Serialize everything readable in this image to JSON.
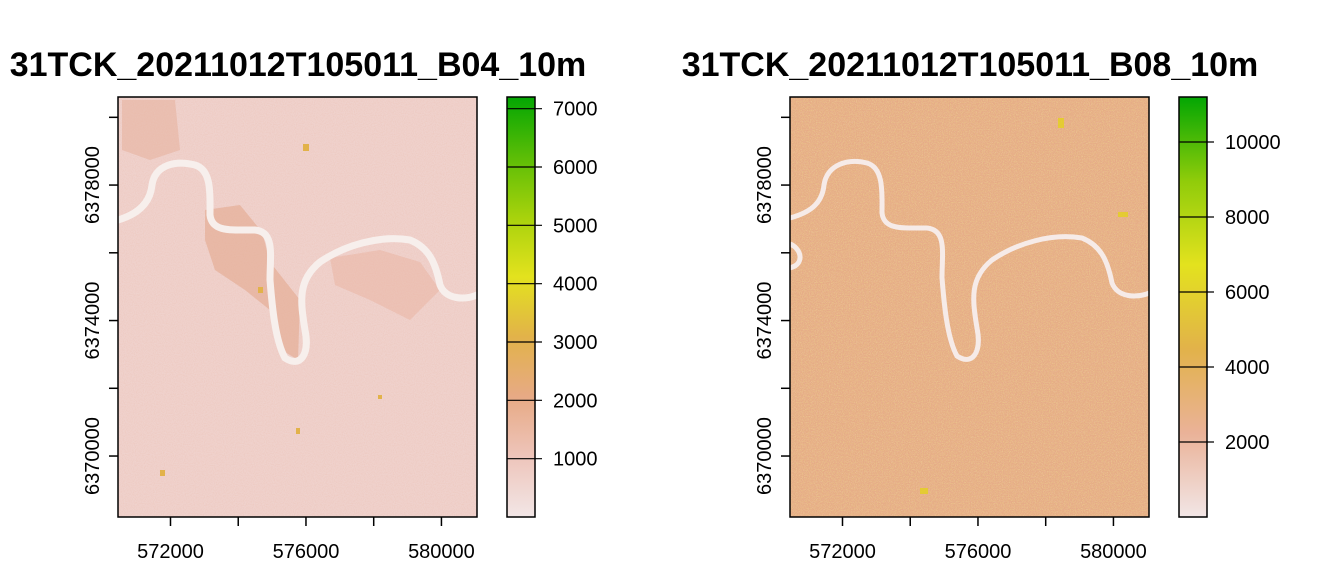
{
  "panels": [
    {
      "title": "31TCK_20211012T105011_B04_10m",
      "x_ticks": [
        "572000",
        "576000",
        "580000"
      ],
      "y_ticks": [
        "6370000",
        "6374000",
        "6378000"
      ],
      "legend": {
        "ticks": [
          "1000",
          "2000",
          "3000",
          "4000",
          "5000",
          "6000",
          "7000"
        ],
        "min": 0,
        "max": 7200
      }
    },
    {
      "title": "31TCK_20211012T105011_B08_10m",
      "x_ticks": [
        "572000",
        "576000",
        "580000"
      ],
      "y_ticks": [
        "6370000",
        "6374000",
        "6378000"
      ],
      "legend": {
        "ticks": [
          "2000",
          "4000",
          "6000",
          "8000",
          "10000"
        ],
        "min": 0,
        "max": 11200
      }
    }
  ],
  "chart_data": [
    {
      "type": "heatmap",
      "title": "31TCK_20211012T105011_B04_10m",
      "xlabel": "",
      "ylabel": "",
      "x_ticks": [
        572000,
        576000,
        580000
      ],
      "y_ticks": [
        6370000,
        6374000,
        6378000
      ],
      "xlim": [
        570450,
        581050
      ],
      "ylim": [
        6368200,
        6380600
      ],
      "colorbar": {
        "min": 0,
        "max": 7200,
        "breaks": [
          0,
          1000,
          2000,
          3000,
          4000,
          5000,
          6000,
          7000
        ]
      },
      "colors": [
        "#f2e6e6",
        "#eec5bb",
        "#e7aa85",
        "#e2b24a",
        "#e3e21e",
        "#a7d20c",
        "#5bbd06",
        "#03a603"
      ],
      "description_values": {
        "typical_background": 1500,
        "river": 300
      }
    },
    {
      "type": "heatmap",
      "title": "31TCK_20211012T105011_B08_10m",
      "xlabel": "",
      "ylabel": "",
      "x_ticks": [
        572000,
        576000,
        580000
      ],
      "y_ticks": [
        6370000,
        6374000,
        6378000
      ],
      "xlim": [
        570450,
        581050
      ],
      "ylim": [
        6368200,
        6380600
      ],
      "colorbar": {
        "min": 0,
        "max": 11200,
        "breaks": [
          0,
          2000,
          4000,
          6000,
          8000,
          10000
        ]
      },
      "colors": [
        "#f2e6e6",
        "#eab298",
        "#e2b24a",
        "#e3e21e",
        "#90cc0a",
        "#03a603"
      ],
      "description_values": {
        "typical_background": 3000,
        "river": 500
      }
    }
  ]
}
